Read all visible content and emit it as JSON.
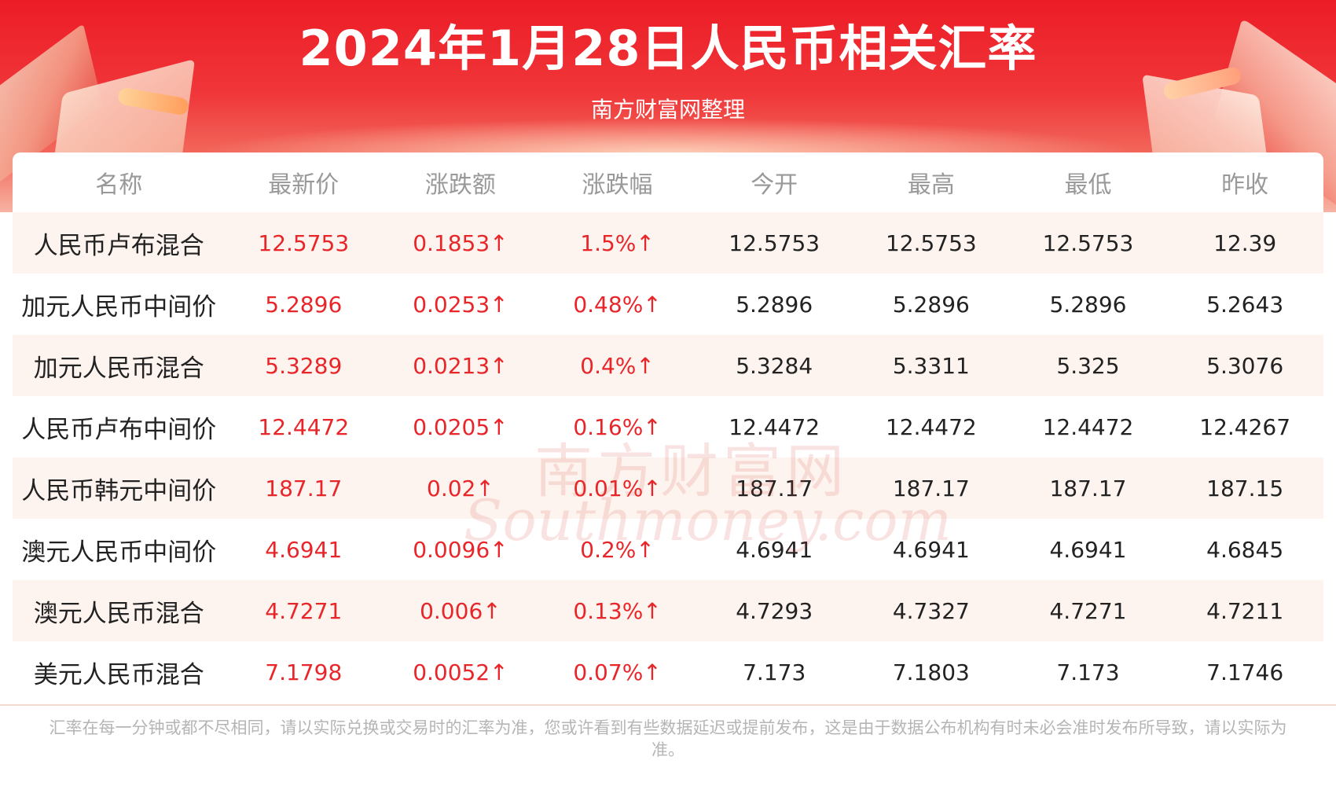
{
  "title": "2024年1月28日人民币相关汇率",
  "subtitle": "南方财富网整理",
  "colors": {
    "header_red": "#ec1c26",
    "up_red": "#e8262a",
    "row_tint": "#fdf4ef",
    "header_text": "#999999"
  },
  "table": {
    "headers": [
      "名称",
      "最新价",
      "涨跌额",
      "涨跌幅",
      "今开",
      "最高",
      "最低",
      "昨收"
    ],
    "rows": [
      [
        "人民币卢布混合",
        "12.5753",
        "0.1853↑",
        "1.5%↑",
        "12.5753",
        "12.5753",
        "12.5753",
        "12.39"
      ],
      [
        "加元人民币中间价",
        "5.2896",
        "0.0253↑",
        "0.48%↑",
        "5.2896",
        "5.2896",
        "5.2896",
        "5.2643"
      ],
      [
        "加元人民币混合",
        "5.3289",
        "0.0213↑",
        "0.4%↑",
        "5.3284",
        "5.3311",
        "5.325",
        "5.3076"
      ],
      [
        "人民币卢布中间价",
        "12.4472",
        "0.0205↑",
        "0.16%↑",
        "12.4472",
        "12.4472",
        "12.4472",
        "12.4267"
      ],
      [
        "人民币韩元中间价",
        "187.17",
        "0.02↑",
        "0.01%↑",
        "187.17",
        "187.17",
        "187.17",
        "187.15"
      ],
      [
        "澳元人民币中间价",
        "4.6941",
        "0.0096↑",
        "0.2%↑",
        "4.6941",
        "4.6941",
        "4.6941",
        "4.6845"
      ],
      [
        "澳元人民币混合",
        "4.7271",
        "0.006↑",
        "0.13%↑",
        "4.7293",
        "4.7327",
        "4.7271",
        "4.7211"
      ],
      [
        "美元人民币混合",
        "7.1798",
        "0.0052↑",
        "0.07%↑",
        "7.173",
        "7.1803",
        "7.173",
        "7.1746"
      ]
    ]
  },
  "watermark": {
    "cn": "南方财富网",
    "en": "Southmoney.com"
  },
  "footer": "汇率在每一分钟或都不尽相同，请以实际兑换或交易时的汇率为准，您或许看到有些数据延迟或提前发布，这是由于数据公布机构有时未必会准时发布所导致，请以实际为准。"
}
